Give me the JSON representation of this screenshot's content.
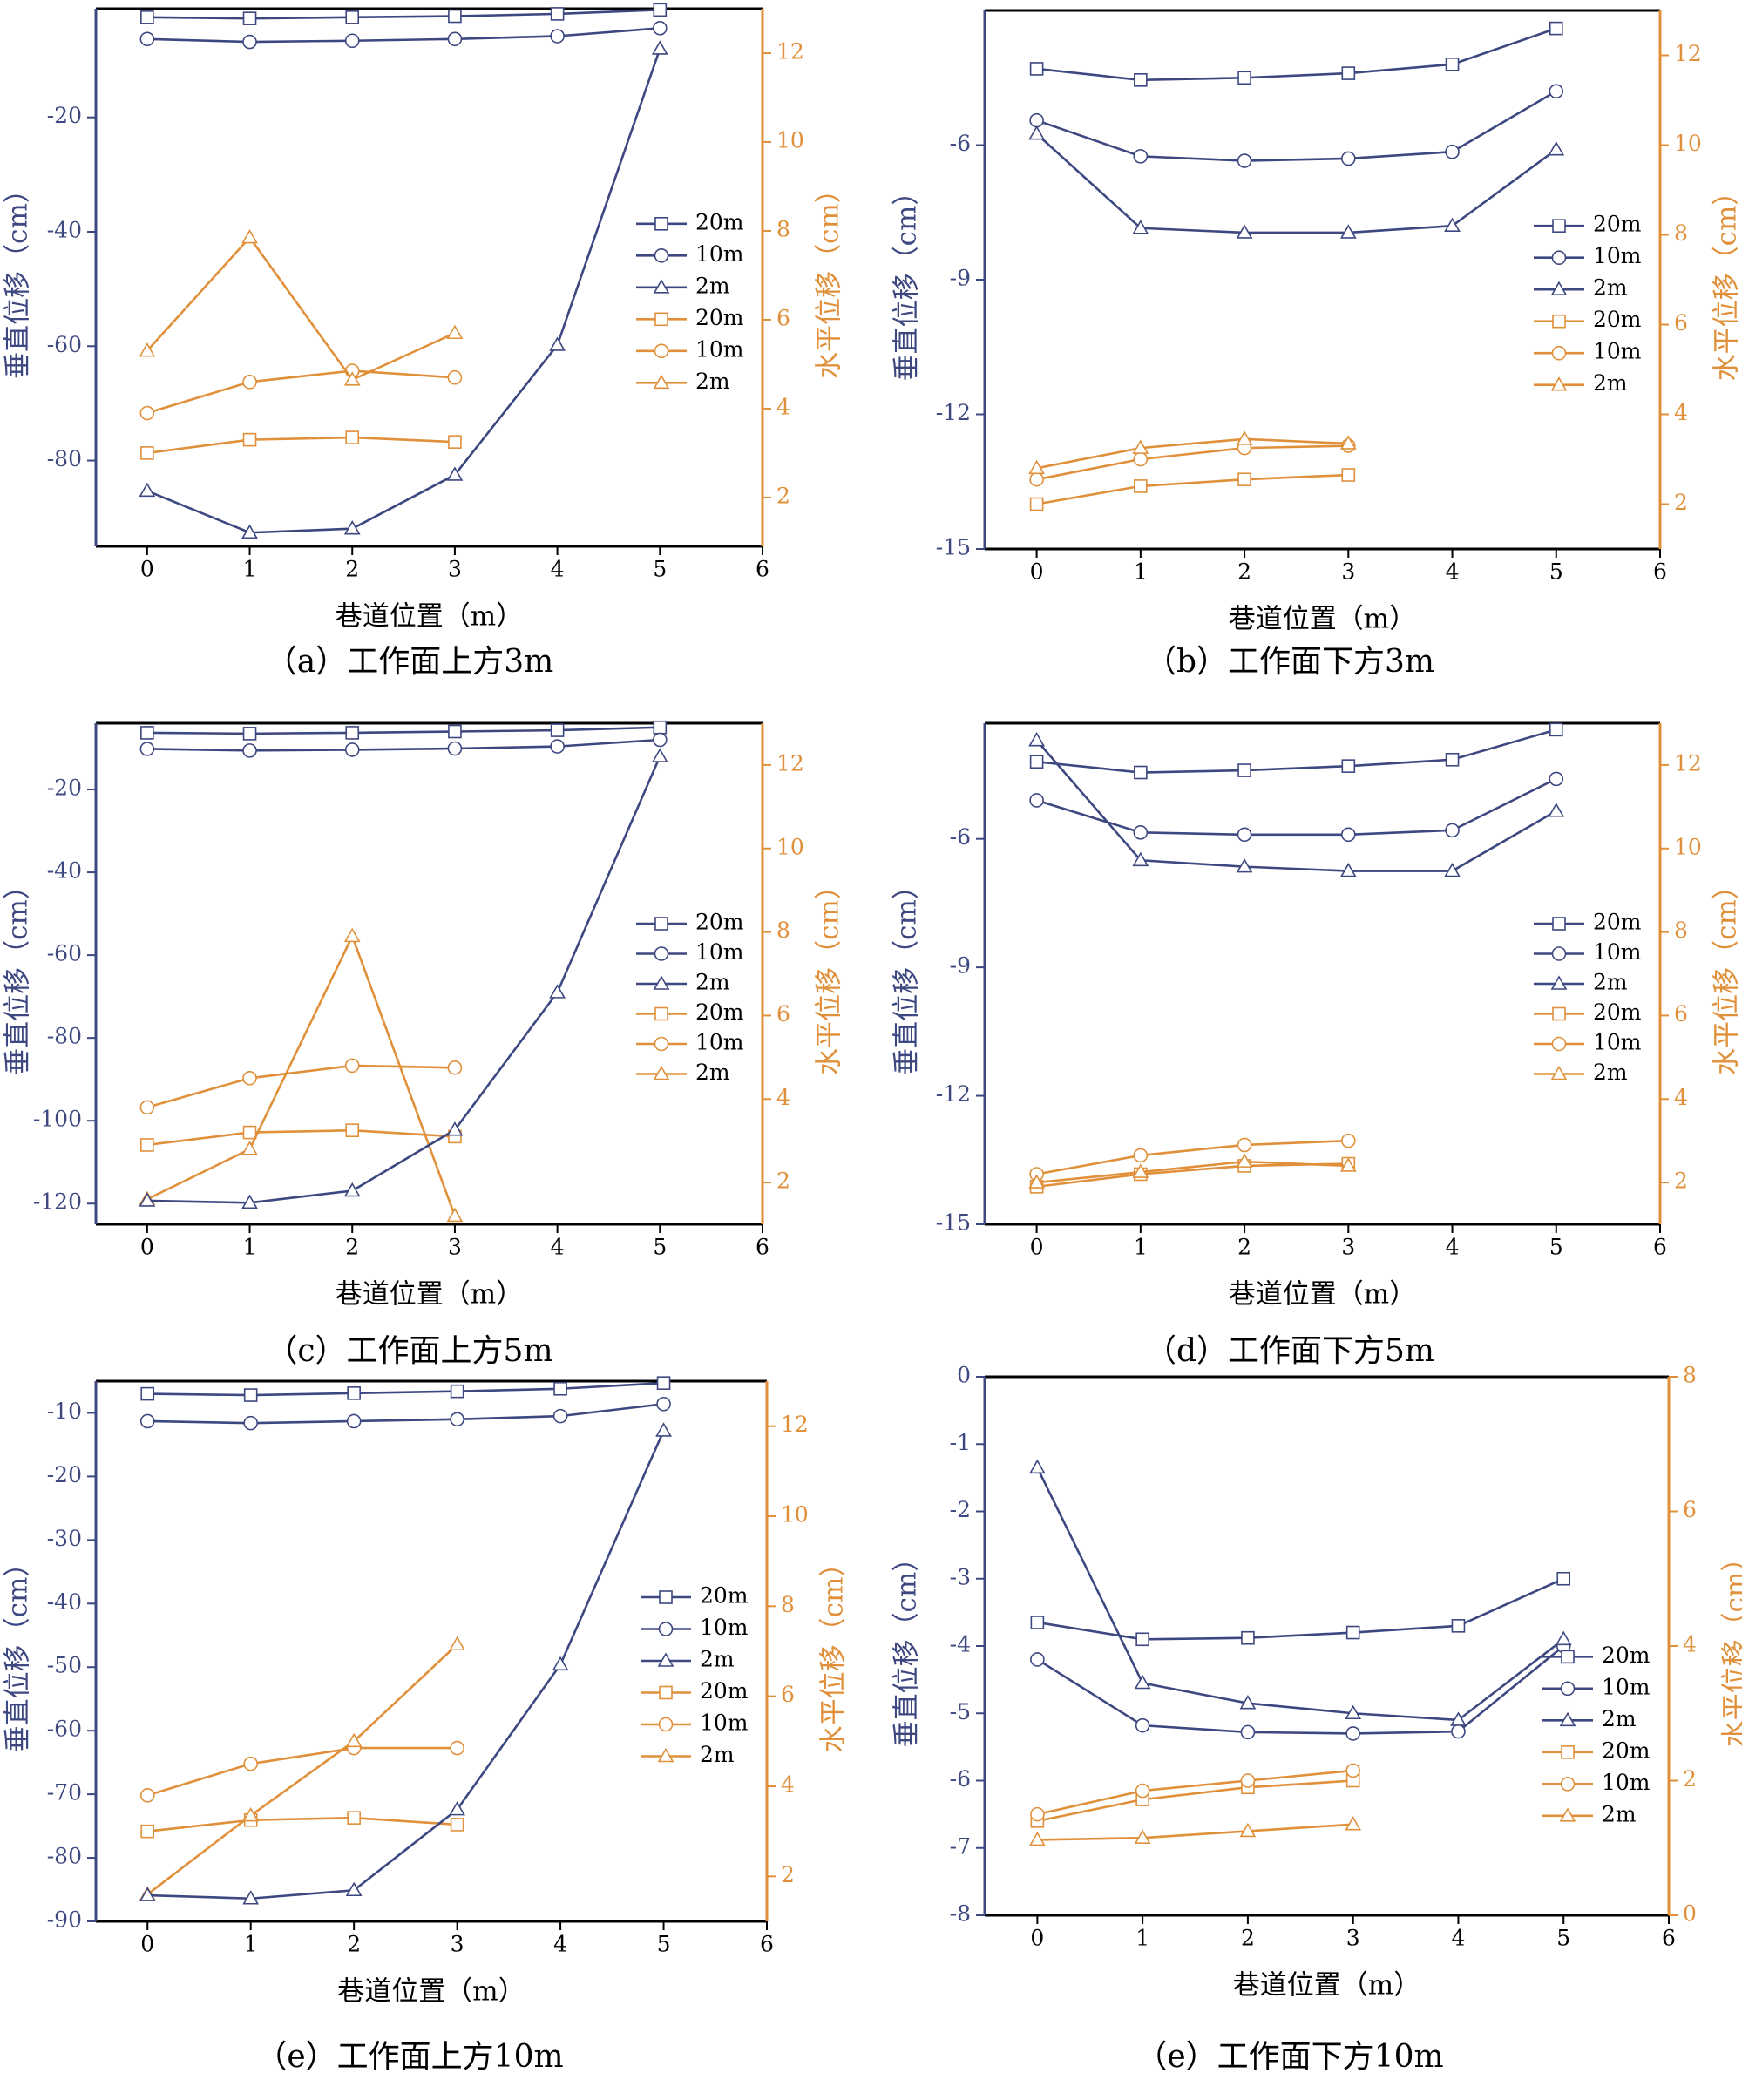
{
  "colors": {
    "blue": "#3d4780",
    "orange": "#e0903a",
    "axis": "#000000"
  },
  "common": {
    "x_label": "巷道位置（m）",
    "y_label_left": "垂直位移（cm）",
    "y_label_right": "水平位移（cm）",
    "x_ticks": [
      0,
      1,
      2,
      3,
      4,
      5,
      6
    ],
    "legend_labels": [
      "20m",
      "10m",
      "2m",
      "20m",
      "10m",
      "2m"
    ],
    "legend_markers": [
      "square",
      "circle",
      "triangle",
      "square",
      "circle",
      "triangle"
    ]
  },
  "chart_data": [
    {
      "type": "line",
      "caption": "（a）工作面上方3m",
      "xlim": [
        -0.5,
        6
      ],
      "left_axis": {
        "ylim": [
          -95,
          -1
        ],
        "ticks": [
          -20,
          -40,
          -60,
          -80
        ]
      },
      "right_axis": {
        "ylim": [
          0.9,
          13
        ],
        "ticks": [
          2,
          4,
          6,
          8,
          10,
          12
        ]
      },
      "vertical_series": [
        {
          "name": "20m",
          "x": [
            0,
            1,
            2,
            3,
            4,
            5
          ],
          "values": [
            -2.5,
            -2.7,
            -2.5,
            -2.3,
            -1.9,
            -1.2
          ]
        },
        {
          "name": "10m",
          "x": [
            0,
            1,
            2,
            3,
            4,
            5
          ],
          "values": [
            -6.3,
            -6.8,
            -6.6,
            -6.3,
            -5.8,
            -4.4
          ]
        },
        {
          "name": "2m",
          "x": [
            0,
            1,
            2,
            3,
            4,
            5
          ],
          "values": [
            -85.3,
            -92.6,
            -91.9,
            -82.5,
            -59.8,
            -8.0
          ]
        }
      ],
      "horizontal_series": [
        {
          "name": "20m",
          "x": [
            0,
            1,
            2,
            3
          ],
          "values": [
            3.0,
            3.3,
            3.35,
            3.25
          ]
        },
        {
          "name": "10m",
          "x": [
            0,
            1,
            2,
            3
          ],
          "values": [
            3.9,
            4.6,
            4.85,
            4.7
          ]
        },
        {
          "name": "2m",
          "x": [
            0,
            1,
            2,
            3
          ],
          "values": [
            5.3,
            7.85,
            4.65,
            5.7
          ]
        }
      ]
    },
    {
      "type": "line",
      "caption": "（b）工作面下方3m",
      "xlim": [
        -0.5,
        6
      ],
      "left_axis": {
        "ylim": [
          -15,
          -3
        ],
        "ticks": [
          -6,
          -9,
          -12,
          -15
        ]
      },
      "right_axis": {
        "ylim": [
          1,
          13
        ],
        "ticks": [
          2,
          4,
          6,
          8,
          10,
          12
        ]
      },
      "vertical_series": [
        {
          "name": "20m",
          "x": [
            0,
            1,
            2,
            3,
            4,
            5
          ],
          "values": [
            -4.3,
            -4.55,
            -4.5,
            -4.4,
            -4.2,
            -3.4
          ]
        },
        {
          "name": "10m",
          "x": [
            0,
            1,
            2,
            3,
            4,
            5
          ],
          "values": [
            -5.45,
            -6.25,
            -6.35,
            -6.3,
            -6.15,
            -4.8
          ]
        },
        {
          "name": "2m",
          "x": [
            0,
            1,
            2,
            3,
            4,
            5
          ],
          "values": [
            -5.75,
            -7.85,
            -7.95,
            -7.95,
            -7.8,
            -6.1
          ]
        }
      ],
      "horizontal_series": [
        {
          "name": "20m",
          "x": [
            0,
            1,
            2,
            3
          ],
          "values": [
            2.0,
            2.4,
            2.55,
            2.65
          ]
        },
        {
          "name": "10m",
          "x": [
            0,
            1,
            2,
            3
          ],
          "values": [
            2.55,
            3.0,
            3.25,
            3.3
          ]
        },
        {
          "name": "2m",
          "x": [
            0,
            1,
            2,
            3
          ],
          "values": [
            2.8,
            3.25,
            3.45,
            3.35
          ]
        }
      ]
    },
    {
      "type": "line",
      "caption": "（c）工作面上方5m",
      "xlim": [
        -0.5,
        6
      ],
      "left_axis": {
        "ylim": [
          -125,
          -4
        ],
        "ticks": [
          -20,
          -40,
          -60,
          -80,
          -100,
          -120
        ]
      },
      "right_axis": {
        "ylim": [
          1,
          13
        ],
        "ticks": [
          2,
          4,
          6,
          8,
          10,
          12
        ]
      },
      "vertical_series": [
        {
          "name": "20m",
          "x": [
            0,
            1,
            2,
            3,
            4,
            5
          ],
          "values": [
            -6.3,
            -6.5,
            -6.3,
            -6.0,
            -5.7,
            -5.0
          ]
        },
        {
          "name": "10m",
          "x": [
            0,
            1,
            2,
            3,
            4,
            5
          ],
          "values": [
            -10.2,
            -10.6,
            -10.4,
            -10.1,
            -9.6,
            -8.0
          ]
        },
        {
          "name": "2m",
          "x": [
            0,
            1,
            2,
            3,
            4,
            5
          ],
          "values": [
            -119.3,
            -119.8,
            -116.9,
            -102.2,
            -69.0,
            -12.0
          ]
        }
      ],
      "horizontal_series": [
        {
          "name": "20m",
          "x": [
            0,
            1,
            2,
            3
          ],
          "values": [
            2.9,
            3.2,
            3.25,
            3.1
          ]
        },
        {
          "name": "10m",
          "x": [
            0,
            1,
            2,
            3
          ],
          "values": [
            3.8,
            4.5,
            4.8,
            4.75
          ]
        },
        {
          "name": "2m",
          "x": [
            0,
            1,
            2,
            3
          ],
          "values": [
            1.6,
            2.8,
            7.9,
            1.2
          ]
        }
      ]
    },
    {
      "type": "line",
      "caption": "（d）工作面下方5m",
      "xlim": [
        -0.5,
        6
      ],
      "left_axis": {
        "ylim": [
          -15,
          -3.3
        ],
        "ticks": [
          -6,
          -9,
          -12,
          -15
        ]
      },
      "right_axis": {
        "ylim": [
          1,
          13
        ],
        "ticks": [
          2,
          4,
          6,
          8,
          10,
          12
        ]
      },
      "vertical_series": [
        {
          "name": "20m",
          "x": [
            0,
            1,
            2,
            3,
            4,
            5
          ],
          "values": [
            -4.2,
            -4.45,
            -4.4,
            -4.3,
            -4.15,
            -3.45
          ]
        },
        {
          "name": "10m",
          "x": [
            0,
            1,
            2,
            3,
            4,
            5
          ],
          "values": [
            -5.1,
            -5.85,
            -5.9,
            -5.9,
            -5.8,
            -4.6
          ]
        },
        {
          "name": "2m",
          "x": [
            0,
            1,
            2,
            3,
            4,
            5
          ],
          "values": [
            -3.7,
            -6.5,
            -6.65,
            -6.75,
            -6.75,
            -5.35
          ]
        }
      ],
      "horizontal_series": [
        {
          "name": "20m",
          "x": [
            0,
            1,
            2,
            3
          ],
          "values": [
            1.9,
            2.2,
            2.4,
            2.45
          ]
        },
        {
          "name": "10m",
          "x": [
            0,
            1,
            2,
            3
          ],
          "values": [
            2.2,
            2.65,
            2.9,
            3.0
          ]
        },
        {
          "name": "2m",
          "x": [
            0,
            1,
            2,
            3
          ],
          "values": [
            2.0,
            2.25,
            2.5,
            2.4
          ]
        }
      ]
    },
    {
      "type": "line",
      "caption": "（e）工作面上方10m",
      "xlim": [
        -0.5,
        6
      ],
      "left_axis": {
        "ylim": [
          -90,
          -5
        ],
        "ticks": [
          -10,
          -20,
          -30,
          -40,
          -50,
          -60,
          -70,
          -80,
          -90
        ]
      },
      "right_axis": {
        "ylim": [
          1,
          13
        ],
        "ticks": [
          2,
          4,
          6,
          8,
          10,
          12
        ]
      },
      "vertical_series": [
        {
          "name": "20m",
          "x": [
            0,
            1,
            2,
            3,
            4,
            5
          ],
          "values": [
            -7.0,
            -7.2,
            -6.9,
            -6.6,
            -6.2,
            -5.3
          ]
        },
        {
          "name": "10m",
          "x": [
            0,
            1,
            2,
            3,
            4,
            5
          ],
          "values": [
            -11.3,
            -11.6,
            -11.3,
            -11.0,
            -10.5,
            -8.6
          ]
        },
        {
          "name": "2m",
          "x": [
            0,
            1,
            2,
            3,
            4,
            5
          ],
          "values": [
            -85.9,
            -86.4,
            -85.1,
            -72.4,
            -49.6,
            -12.8
          ]
        }
      ],
      "horizontal_series": [
        {
          "name": "20m",
          "x": [
            0,
            1,
            2,
            3
          ],
          "values": [
            3.0,
            3.25,
            3.3,
            3.15
          ]
        },
        {
          "name": "10m",
          "x": [
            0,
            1,
            2,
            3
          ],
          "values": [
            3.8,
            4.5,
            4.85,
            4.85
          ]
        },
        {
          "name": "2m",
          "x": [
            0,
            1,
            2,
            3
          ],
          "values": [
            1.6,
            3.35,
            5.0,
            7.15
          ]
        }
      ]
    },
    {
      "type": "line",
      "caption": "（e）工作面下方10m",
      "xlim": [
        -0.5,
        6
      ],
      "left_axis": {
        "ylim": [
          -8,
          0
        ],
        "ticks": [
          0,
          -1,
          -2,
          -3,
          -4,
          -5,
          -6,
          -7,
          -8
        ]
      },
      "right_axis": {
        "ylim": [
          0,
          8
        ],
        "ticks": [
          0,
          2,
          4,
          6,
          8
        ]
      },
      "vertical_series": [
        {
          "name": "20m",
          "x": [
            0,
            1,
            2,
            3,
            4,
            5
          ],
          "values": [
            -3.65,
            -3.9,
            -3.88,
            -3.8,
            -3.7,
            -3.0
          ]
        },
        {
          "name": "10m",
          "x": [
            0,
            1,
            2,
            3,
            4,
            5
          ],
          "values": [
            -4.2,
            -5.18,
            -5.28,
            -5.3,
            -5.27,
            -4.0
          ]
        },
        {
          "name": "2m",
          "x": [
            0,
            1,
            2,
            3,
            4,
            5
          ],
          "values": [
            -1.35,
            -4.55,
            -4.85,
            -5.0,
            -5.1,
            -3.9
          ]
        }
      ],
      "horizontal_series": [
        {
          "name": "20m",
          "x": [
            0,
            1,
            2,
            3
          ],
          "values": [
            1.4,
            1.72,
            1.9,
            2.0
          ]
        },
        {
          "name": "10m",
          "x": [
            0,
            1,
            2,
            3
          ],
          "values": [
            1.5,
            1.85,
            2.0,
            2.15
          ]
        },
        {
          "name": "2m",
          "x": [
            0,
            1,
            2,
            3
          ],
          "values": [
            1.12,
            1.15,
            1.25,
            1.35
          ]
        }
      ]
    }
  ]
}
